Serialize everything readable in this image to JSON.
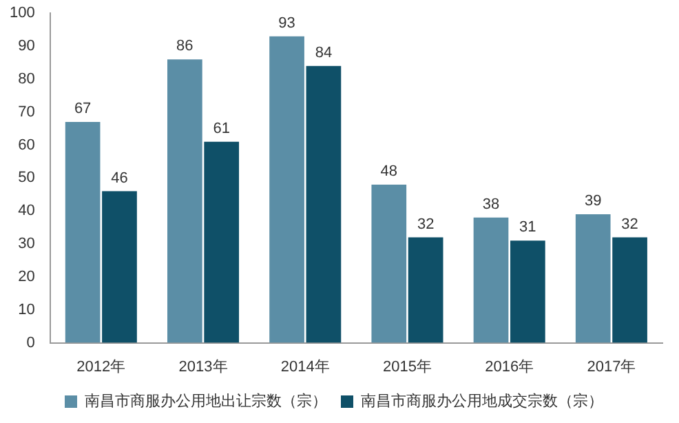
{
  "chart_data": {
    "type": "bar",
    "categories": [
      "2012年",
      "2013年",
      "2014年",
      "2015年",
      "2016年",
      "2017年"
    ],
    "series": [
      {
        "name": "南昌市商服办公用地出让宗数（宗）",
        "color": "#5b8ea6",
        "values": [
          67,
          86,
          93,
          48,
          38,
          39
        ]
      },
      {
        "name": "南昌市商服办公用地成交宗数（宗）",
        "color": "#0f5068",
        "values": [
          46,
          61,
          84,
          32,
          31,
          32
        ]
      }
    ],
    "ylim": [
      0,
      100
    ],
    "yticks": [
      0,
      10,
      20,
      30,
      40,
      50,
      60,
      70,
      80,
      90,
      100
    ],
    "grid": false,
    "legend": "bottom",
    "data_labels": true
  }
}
